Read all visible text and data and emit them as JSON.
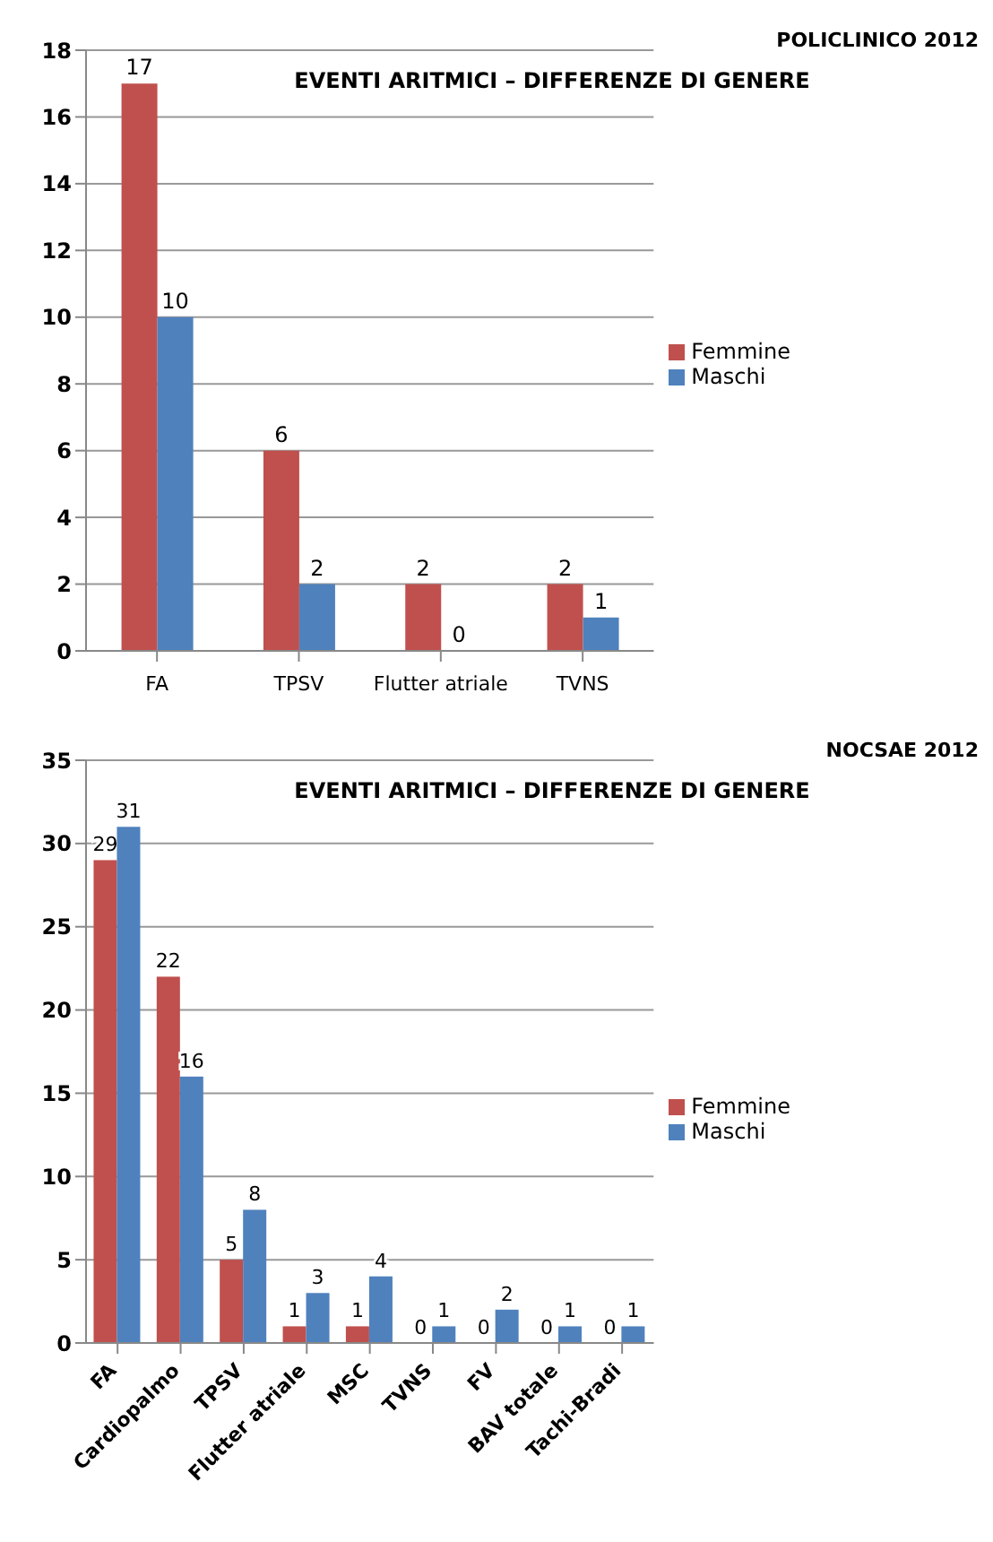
{
  "chart_data": [
    {
      "type": "bar",
      "title": "EVENTI ARITMICI – DIFFERENZE DI GENERE",
      "annotations": [
        "POLICLINICO 2012"
      ],
      "categories": [
        "FA",
        "TPSV",
        "Flutter atriale",
        "TVNS"
      ],
      "series": [
        {
          "name": "Femmine",
          "color": "#c0504d",
          "values": [
            17,
            6,
            2,
            2
          ]
        },
        {
          "name": "Maschi",
          "color": "#4f81bd",
          "values": [
            10,
            2,
            0,
            1
          ]
        }
      ],
      "ylim": [
        0,
        18
      ],
      "yticks": [
        0,
        2,
        4,
        6,
        8,
        10,
        12,
        14,
        16,
        18
      ],
      "grid": "y",
      "legend": "right",
      "data_labels": true
    },
    {
      "type": "bar",
      "title": "EVENTI ARITMICI – DIFFERENZE DI GENERE",
      "annotations": [
        "NOCSAE 2012"
      ],
      "categories": [
        "FA",
        "Cardiopalmo",
        "TPSV",
        "Flutter atriale",
        "MSC",
        "TVNS",
        "FV",
        "BAV totale",
        "Tachi-Bradi"
      ],
      "series": [
        {
          "name": "Femmine",
          "color": "#c0504d",
          "values": [
            29,
            22,
            5,
            1,
            1,
            0,
            0,
            0,
            0
          ]
        },
        {
          "name": "Maschi",
          "color": "#4f81bd",
          "values": [
            31,
            16,
            8,
            3,
            4,
            1,
            2,
            1,
            1
          ]
        }
      ],
      "ylim": [
        0,
        35
      ],
      "yticks": [
        0,
        5,
        10,
        15,
        20,
        25,
        30,
        35
      ],
      "grid": "y",
      "legend": "right",
      "data_labels": true
    }
  ]
}
